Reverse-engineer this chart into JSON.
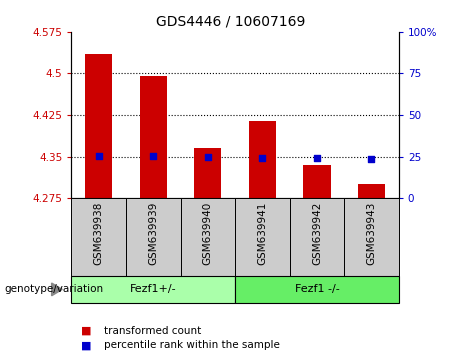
{
  "title": "GDS4446 / 10607169",
  "categories": [
    "GSM639938",
    "GSM639939",
    "GSM639940",
    "GSM639941",
    "GSM639942",
    "GSM639943"
  ],
  "bar_values": [
    4.535,
    4.495,
    4.365,
    4.415,
    4.335,
    4.3
  ],
  "bar_bottom": 4.275,
  "dot_values": [
    4.352,
    4.352,
    4.35,
    4.347,
    4.347,
    4.345
  ],
  "bar_color": "#cc0000",
  "dot_color": "#0000cc",
  "ylim_left": [
    4.275,
    4.575
  ],
  "ylim_right": [
    0,
    100
  ],
  "yticks_left": [
    4.275,
    4.35,
    4.425,
    4.5,
    4.575
  ],
  "yticks_right": [
    0,
    25,
    50,
    75,
    100
  ],
  "ytick_labels_left": [
    "4.275",
    "4.35",
    "4.425",
    "4.5",
    "4.575"
  ],
  "ytick_labels_right": [
    "0",
    "25",
    "50",
    "75",
    "100%"
  ],
  "dotted_lines": [
    4.5,
    4.425,
    4.35
  ],
  "group_labels": [
    "Fezf1+/-",
    "Fezf1 -/-"
  ],
  "group_colors": [
    "#90ee90",
    "#7ccc7c"
  ],
  "genotype_label": "genotype/variation",
  "legend_items": [
    {
      "label": "transformed count",
      "color": "#cc0000"
    },
    {
      "label": "percentile rank within the sample",
      "color": "#0000cc"
    }
  ],
  "tick_label_color_left": "#cc0000",
  "tick_label_color_right": "#0000cc",
  "plot_bg": "#ffffff",
  "xtick_bg": "#cccccc",
  "bar_width": 0.5
}
